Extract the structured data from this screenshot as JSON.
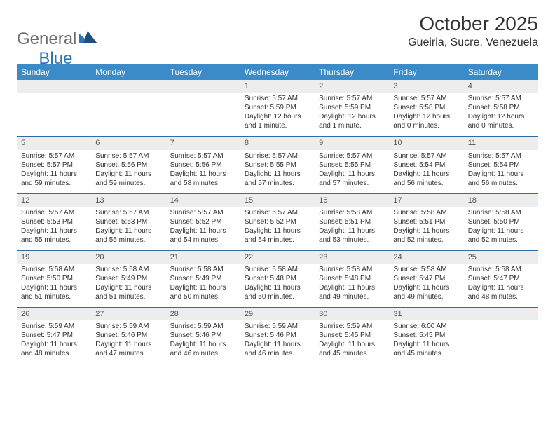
{
  "logo": {
    "general": "General",
    "blue": "Blue"
  },
  "title": "October 2025",
  "location": "Gueiria, Sucre, Venezuela",
  "colors": {
    "header_bg": "#3b8bc9",
    "header_text": "#ffffff",
    "daynum_bg": "#ededed",
    "row_border": "#2e6da4",
    "logo_gray": "#6b6b6b",
    "logo_blue": "#2e75b6"
  },
  "weekdays": [
    "Sunday",
    "Monday",
    "Tuesday",
    "Wednesday",
    "Thursday",
    "Friday",
    "Saturday"
  ],
  "weeks": [
    [
      {
        "n": "",
        "sr": "",
        "ss": "",
        "dl": ""
      },
      {
        "n": "",
        "sr": "",
        "ss": "",
        "dl": ""
      },
      {
        "n": "",
        "sr": "",
        "ss": "",
        "dl": ""
      },
      {
        "n": "1",
        "sr": "Sunrise: 5:57 AM",
        "ss": "Sunset: 5:59 PM",
        "dl": "Daylight: 12 hours and 1 minute."
      },
      {
        "n": "2",
        "sr": "Sunrise: 5:57 AM",
        "ss": "Sunset: 5:59 PM",
        "dl": "Daylight: 12 hours and 1 minute."
      },
      {
        "n": "3",
        "sr": "Sunrise: 5:57 AM",
        "ss": "Sunset: 5:58 PM",
        "dl": "Daylight: 12 hours and 0 minutes."
      },
      {
        "n": "4",
        "sr": "Sunrise: 5:57 AM",
        "ss": "Sunset: 5:58 PM",
        "dl": "Daylight: 12 hours and 0 minutes."
      }
    ],
    [
      {
        "n": "5",
        "sr": "Sunrise: 5:57 AM",
        "ss": "Sunset: 5:57 PM",
        "dl": "Daylight: 11 hours and 59 minutes."
      },
      {
        "n": "6",
        "sr": "Sunrise: 5:57 AM",
        "ss": "Sunset: 5:56 PM",
        "dl": "Daylight: 11 hours and 59 minutes."
      },
      {
        "n": "7",
        "sr": "Sunrise: 5:57 AM",
        "ss": "Sunset: 5:56 PM",
        "dl": "Daylight: 11 hours and 58 minutes."
      },
      {
        "n": "8",
        "sr": "Sunrise: 5:57 AM",
        "ss": "Sunset: 5:55 PM",
        "dl": "Daylight: 11 hours and 57 minutes."
      },
      {
        "n": "9",
        "sr": "Sunrise: 5:57 AM",
        "ss": "Sunset: 5:55 PM",
        "dl": "Daylight: 11 hours and 57 minutes."
      },
      {
        "n": "10",
        "sr": "Sunrise: 5:57 AM",
        "ss": "Sunset: 5:54 PM",
        "dl": "Daylight: 11 hours and 56 minutes."
      },
      {
        "n": "11",
        "sr": "Sunrise: 5:57 AM",
        "ss": "Sunset: 5:54 PM",
        "dl": "Daylight: 11 hours and 56 minutes."
      }
    ],
    [
      {
        "n": "12",
        "sr": "Sunrise: 5:57 AM",
        "ss": "Sunset: 5:53 PM",
        "dl": "Daylight: 11 hours and 55 minutes."
      },
      {
        "n": "13",
        "sr": "Sunrise: 5:57 AM",
        "ss": "Sunset: 5:53 PM",
        "dl": "Daylight: 11 hours and 55 minutes."
      },
      {
        "n": "14",
        "sr": "Sunrise: 5:57 AM",
        "ss": "Sunset: 5:52 PM",
        "dl": "Daylight: 11 hours and 54 minutes."
      },
      {
        "n": "15",
        "sr": "Sunrise: 5:57 AM",
        "ss": "Sunset: 5:52 PM",
        "dl": "Daylight: 11 hours and 54 minutes."
      },
      {
        "n": "16",
        "sr": "Sunrise: 5:58 AM",
        "ss": "Sunset: 5:51 PM",
        "dl": "Daylight: 11 hours and 53 minutes."
      },
      {
        "n": "17",
        "sr": "Sunrise: 5:58 AM",
        "ss": "Sunset: 5:51 PM",
        "dl": "Daylight: 11 hours and 52 minutes."
      },
      {
        "n": "18",
        "sr": "Sunrise: 5:58 AM",
        "ss": "Sunset: 5:50 PM",
        "dl": "Daylight: 11 hours and 52 minutes."
      }
    ],
    [
      {
        "n": "19",
        "sr": "Sunrise: 5:58 AM",
        "ss": "Sunset: 5:50 PM",
        "dl": "Daylight: 11 hours and 51 minutes."
      },
      {
        "n": "20",
        "sr": "Sunrise: 5:58 AM",
        "ss": "Sunset: 5:49 PM",
        "dl": "Daylight: 11 hours and 51 minutes."
      },
      {
        "n": "21",
        "sr": "Sunrise: 5:58 AM",
        "ss": "Sunset: 5:49 PM",
        "dl": "Daylight: 11 hours and 50 minutes."
      },
      {
        "n": "22",
        "sr": "Sunrise: 5:58 AM",
        "ss": "Sunset: 5:48 PM",
        "dl": "Daylight: 11 hours and 50 minutes."
      },
      {
        "n": "23",
        "sr": "Sunrise: 5:58 AM",
        "ss": "Sunset: 5:48 PM",
        "dl": "Daylight: 11 hours and 49 minutes."
      },
      {
        "n": "24",
        "sr": "Sunrise: 5:58 AM",
        "ss": "Sunset: 5:47 PM",
        "dl": "Daylight: 11 hours and 49 minutes."
      },
      {
        "n": "25",
        "sr": "Sunrise: 5:58 AM",
        "ss": "Sunset: 5:47 PM",
        "dl": "Daylight: 11 hours and 48 minutes."
      }
    ],
    [
      {
        "n": "26",
        "sr": "Sunrise: 5:59 AM",
        "ss": "Sunset: 5:47 PM",
        "dl": "Daylight: 11 hours and 48 minutes."
      },
      {
        "n": "27",
        "sr": "Sunrise: 5:59 AM",
        "ss": "Sunset: 5:46 PM",
        "dl": "Daylight: 11 hours and 47 minutes."
      },
      {
        "n": "28",
        "sr": "Sunrise: 5:59 AM",
        "ss": "Sunset: 5:46 PM",
        "dl": "Daylight: 11 hours and 46 minutes."
      },
      {
        "n": "29",
        "sr": "Sunrise: 5:59 AM",
        "ss": "Sunset: 5:46 PM",
        "dl": "Daylight: 11 hours and 46 minutes."
      },
      {
        "n": "30",
        "sr": "Sunrise: 5:59 AM",
        "ss": "Sunset: 5:45 PM",
        "dl": "Daylight: 11 hours and 45 minutes."
      },
      {
        "n": "31",
        "sr": "Sunrise: 6:00 AM",
        "ss": "Sunset: 5:45 PM",
        "dl": "Daylight: 11 hours and 45 minutes."
      },
      {
        "n": "",
        "sr": "",
        "ss": "",
        "dl": ""
      }
    ]
  ]
}
